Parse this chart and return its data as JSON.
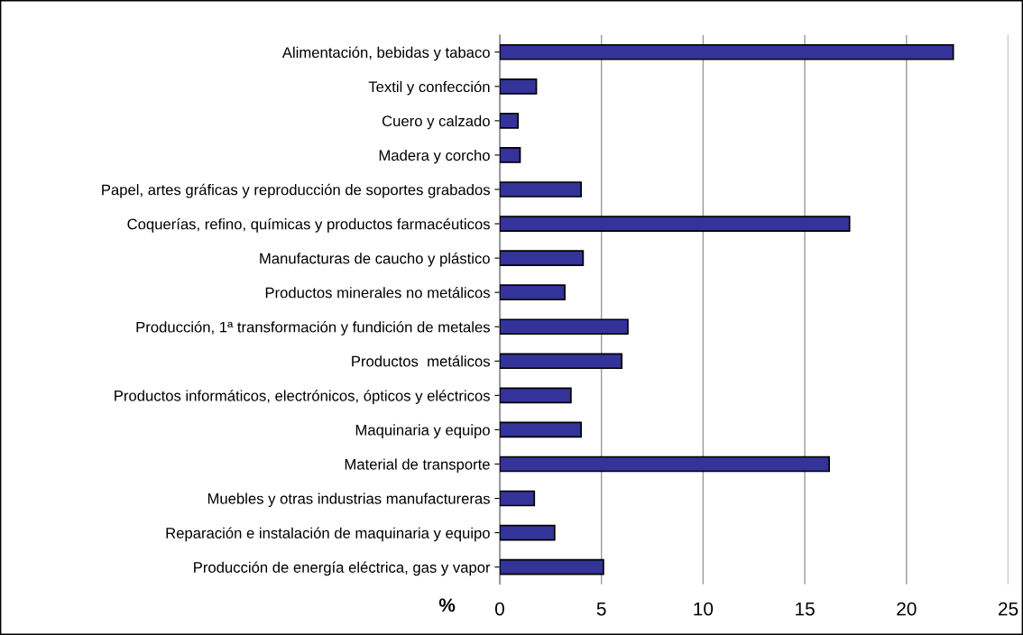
{
  "chart_data": {
    "type": "bar",
    "orientation": "horizontal",
    "xlabel": "%",
    "categories": [
      "Alimentación, bebidas y tabaco",
      "Textil y confección",
      "Cuero y calzado",
      "Madera y corcho",
      "Papel, artes gráficas y reproducción de soportes grabados",
      "Coquerías, refino, químicas y productos farmacéuticos",
      "Manufacturas de caucho y plástico",
      "Productos minerales no metálicos",
      "Producción, 1ª transformación y fundición de metales",
      "Productos  metálicos",
      "Productos informáticos, electrónicos, ópticos y eléctricos",
      "Maquinaria y equipo",
      "Material de transporte",
      "Muebles y otras industrias manufactureras",
      "Reparación e instalación de maquinaria y equipo",
      "Producción de energía eléctrica, gas y vapor"
    ],
    "values": [
      22.3,
      1.8,
      0.9,
      1.0,
      4.0,
      17.2,
      4.1,
      3.2,
      6.3,
      6.0,
      3.5,
      4.0,
      16.2,
      1.7,
      2.7,
      5.1
    ],
    "color": "#333399",
    "xlim": [
      0,
      25
    ],
    "xticks": [
      0,
      5,
      10,
      15,
      20,
      25
    ],
    "grid": "x"
  }
}
